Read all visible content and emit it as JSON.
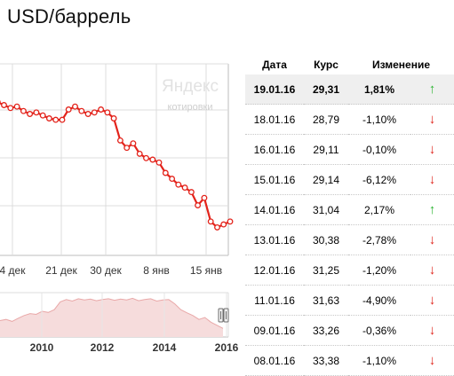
{
  "title": "USD/баррель",
  "watermark": {
    "brand": "Яндекс",
    "sub": "котировки"
  },
  "table": {
    "headers": [
      "Дата",
      "Курс",
      "Изменение"
    ],
    "rows": [
      {
        "date": "19.01.16",
        "rate": "29,31",
        "change": "1,81%",
        "dir": "up",
        "arrow": "↑"
      },
      {
        "date": "18.01.16",
        "rate": "28,79",
        "change": "-1,10%",
        "dir": "down",
        "arrow": "↓"
      },
      {
        "date": "16.01.16",
        "rate": "29,11",
        "change": "-0,10%",
        "dir": "down",
        "arrow": "↓"
      },
      {
        "date": "15.01.16",
        "rate": "29,14",
        "change": "-6,12%",
        "dir": "down",
        "arrow": "↓"
      },
      {
        "date": "14.01.16",
        "rate": "31,04",
        "change": "2,17%",
        "dir": "up",
        "arrow": "↑"
      },
      {
        "date": "13.01.16",
        "rate": "30,38",
        "change": "-2,78%",
        "dir": "down",
        "arrow": "↓"
      },
      {
        "date": "12.01.16",
        "rate": "31,25",
        "change": "-1,20%",
        "dir": "down",
        "arrow": "↓"
      },
      {
        "date": "11.01.16",
        "rate": "31,63",
        "change": "-4,90%",
        "dir": "down",
        "arrow": "↓"
      },
      {
        "date": "09.01.16",
        "rate": "33,26",
        "change": "-0,36%",
        "dir": "down",
        "arrow": "↓"
      },
      {
        "date": "08.01.16",
        "rate": "33,38",
        "change": "-1,10%",
        "dir": "down",
        "arrow": "↓"
      }
    ]
  },
  "colors": {
    "line": "#e3231b",
    "grid": "#dcdcdc",
    "axis": "#bdbdbd",
    "nav_fill": "#f6dcdc",
    "nav_line": "#e9a8a8",
    "up": "#2fb534",
    "down": "#e0241b"
  },
  "chart_data": {
    "type": "line",
    "title": "",
    "xlabel": "",
    "ylabel": "",
    "x_ticks": [
      "4 дек",
      "21 дек",
      "30 дек",
      "8 янв",
      "15 янв"
    ],
    "series": [
      {
        "values": [
          37.3,
          37.4,
          37.2,
          37.0,
          37.1,
          36.8,
          36.6,
          36.7,
          36.5,
          36.3,
          36.2,
          36.2,
          36.9,
          37.1,
          36.8,
          36.6,
          36.7,
          36.9,
          36.7,
          36.3,
          34.8,
          34.3,
          34.6,
          33.9,
          33.6,
          33.5,
          33.3,
          32.6,
          32.2,
          31.8,
          31.6,
          31.3,
          30.4,
          30.9,
          29.3,
          28.9,
          29.1,
          29.3
        ]
      }
    ],
    "grid": true,
    "navigator": {
      "x_ticks": [
        "2010",
        "2012",
        "2014",
        "2016"
      ],
      "values": [
        0.42,
        0.45,
        0.4,
        0.48,
        0.55,
        0.6,
        0.58,
        0.66,
        0.63,
        0.7,
        0.9,
        0.96,
        0.92,
        0.98,
        0.95,
        0.97,
        0.93,
        0.96,
        0.98,
        0.94,
        0.97,
        0.95,
        0.99,
        0.93,
        0.96,
        0.98,
        0.92,
        0.95,
        0.96,
        0.85,
        0.7,
        0.62,
        0.55,
        0.45,
        0.5,
        0.38,
        0.3,
        0.22
      ]
    }
  }
}
